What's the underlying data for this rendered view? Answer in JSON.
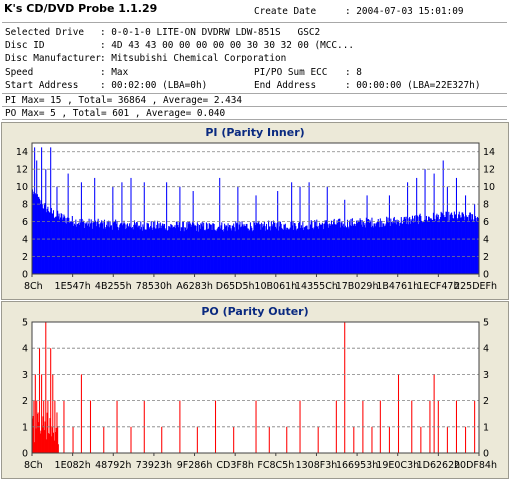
{
  "app": {
    "title": "K's CD/DVD Probe 1.1.29"
  },
  "info": {
    "create_date_label": "Create Date",
    "create_date_value": ": 2004-07-03 15:01:09",
    "selected_drive_label": "Selected Drive",
    "selected_drive_value": ": 0-0-1-0 LITE-ON DVDRW LDW-851S   GSC2",
    "disc_id_label": "Disc ID",
    "disc_id_value": ": 4D 43 43 00 00 00 00 00 30 30 32 00 (MCC...",
    "manufacturer_label": "Disc Manufacturer",
    "manufacturer_value": ": Mitsubishi Chemical Corporation",
    "speed_label": "Speed",
    "speed_value": ": Max",
    "pipo_label": "PI/PO Sum ECC",
    "pipo_value": ": 8",
    "start_label": "Start Address",
    "start_value": ": 00:02:00 (LBA=0h)",
    "end_label": "End Address",
    "end_value": ": 00:00:00 (LBA=22E327h)",
    "pi_summary": "PI Max= 15 , Total= 36864 , Average= 2.434",
    "po_summary": "PO Max= 5 , Total= 601 , Average= 0.040"
  },
  "chart_data": [
    {
      "type": "bar",
      "title": "PI (Parity Inner)",
      "ylim": [
        0,
        15
      ],
      "yticks": [
        0,
        2,
        4,
        6,
        8,
        10,
        12,
        14
      ],
      "xticks": [
        "8Ch",
        "1E547h",
        "4B255h",
        "78530h",
        "A6283h",
        "D65D5h",
        "10B061h",
        "14355Ch",
        "17B029h",
        "1B4761h",
        "1ECF47h",
        "225DEFh"
      ],
      "grid": true,
      "color": "#0000ff",
      "max": 15,
      "total": 36864,
      "average": 2.434,
      "profile": [
        [
          0,
          9.5
        ],
        [
          0.02,
          8
        ],
        [
          0.05,
          6.8
        ],
        [
          0.08,
          6.2
        ],
        [
          0.12,
          5.8
        ],
        [
          0.2,
          5.6
        ],
        [
          0.3,
          5.5
        ],
        [
          0.4,
          5.4
        ],
        [
          0.5,
          5.5
        ],
        [
          0.6,
          5.6
        ],
        [
          0.7,
          5.8
        ],
        [
          0.8,
          6.0
        ],
        [
          0.85,
          6.2
        ],
        [
          0.9,
          6.5
        ],
        [
          0.95,
          6.6
        ],
        [
          1.0,
          6.5
        ]
      ],
      "peaks": [
        [
          0.005,
          14.5
        ],
        [
          0.01,
          13
        ],
        [
          0.02,
          14.5
        ],
        [
          0.03,
          12
        ],
        [
          0.04,
          14.5
        ],
        [
          0.055,
          10
        ],
        [
          0.08,
          11.5
        ],
        [
          0.11,
          10.5
        ],
        [
          0.14,
          11
        ],
        [
          0.18,
          10
        ],
        [
          0.2,
          10.5
        ],
        [
          0.22,
          11
        ],
        [
          0.25,
          10.5
        ],
        [
          0.3,
          10.5
        ],
        [
          0.33,
          10
        ],
        [
          0.36,
          9.5
        ],
        [
          0.42,
          11
        ],
        [
          0.46,
          10
        ],
        [
          0.5,
          9
        ],
        [
          0.55,
          9.5
        ],
        [
          0.58,
          10.5
        ],
        [
          0.6,
          10
        ],
        [
          0.62,
          10.5
        ],
        [
          0.66,
          10
        ],
        [
          0.7,
          8.5
        ],
        [
          0.75,
          9
        ],
        [
          0.8,
          9
        ],
        [
          0.84,
          10.5
        ],
        [
          0.86,
          11
        ],
        [
          0.88,
          12
        ],
        [
          0.9,
          11.5
        ],
        [
          0.92,
          13
        ],
        [
          0.93,
          10
        ],
        [
          0.95,
          11
        ],
        [
          0.97,
          9
        ],
        [
          0.99,
          8
        ]
      ]
    },
    {
      "type": "bar",
      "title": "PO (Parity Outer)",
      "ylim": [
        0,
        5
      ],
      "yticks": [
        0,
        1,
        2,
        3,
        4,
        5
      ],
      "xticks": [
        "8Ch",
        "1E082h",
        "48792h",
        "73923h",
        "9F286h",
        "CD3F8h",
        "FC8C5h",
        "1308F3h",
        "166953h",
        "19E0C3h",
        "1D6262h",
        "20DF84h"
      ],
      "grid": true,
      "color": "#ff0000",
      "max": 5,
      "total": 601,
      "average": 0.04,
      "profile": [
        [
          0,
          1
        ],
        [
          0.055,
          1
        ],
        [
          0.06,
          0
        ],
        [
          1.0,
          0
        ]
      ],
      "peaks": [
        [
          0.003,
          2
        ],
        [
          0.006,
          3
        ],
        [
          0.01,
          2
        ],
        [
          0.015,
          4
        ],
        [
          0.02,
          3
        ],
        [
          0.025,
          2
        ],
        [
          0.03,
          5
        ],
        [
          0.035,
          2
        ],
        [
          0.04,
          4
        ],
        [
          0.045,
          3
        ],
        [
          0.05,
          2
        ],
        [
          0.07,
          2
        ],
        [
          0.09,
          1
        ],
        [
          0.11,
          3
        ],
        [
          0.13,
          2
        ],
        [
          0.16,
          1
        ],
        [
          0.19,
          2
        ],
        [
          0.22,
          1
        ],
        [
          0.25,
          2
        ],
        [
          0.29,
          1
        ],
        [
          0.33,
          2
        ],
        [
          0.37,
          1
        ],
        [
          0.41,
          2
        ],
        [
          0.45,
          1
        ],
        [
          0.5,
          2
        ],
        [
          0.53,
          1
        ],
        [
          0.57,
          1
        ],
        [
          0.6,
          2
        ],
        [
          0.64,
          1
        ],
        [
          0.68,
          2
        ],
        [
          0.7,
          5
        ],
        [
          0.72,
          1
        ],
        [
          0.74,
          2
        ],
        [
          0.76,
          1
        ],
        [
          0.78,
          2
        ],
        [
          0.8,
          1
        ],
        [
          0.82,
          3
        ],
        [
          0.85,
          2
        ],
        [
          0.87,
          1
        ],
        [
          0.89,
          2
        ],
        [
          0.9,
          3
        ],
        [
          0.91,
          2
        ],
        [
          0.93,
          1
        ],
        [
          0.95,
          2
        ],
        [
          0.97,
          1
        ],
        [
          0.99,
          2
        ]
      ]
    }
  ]
}
